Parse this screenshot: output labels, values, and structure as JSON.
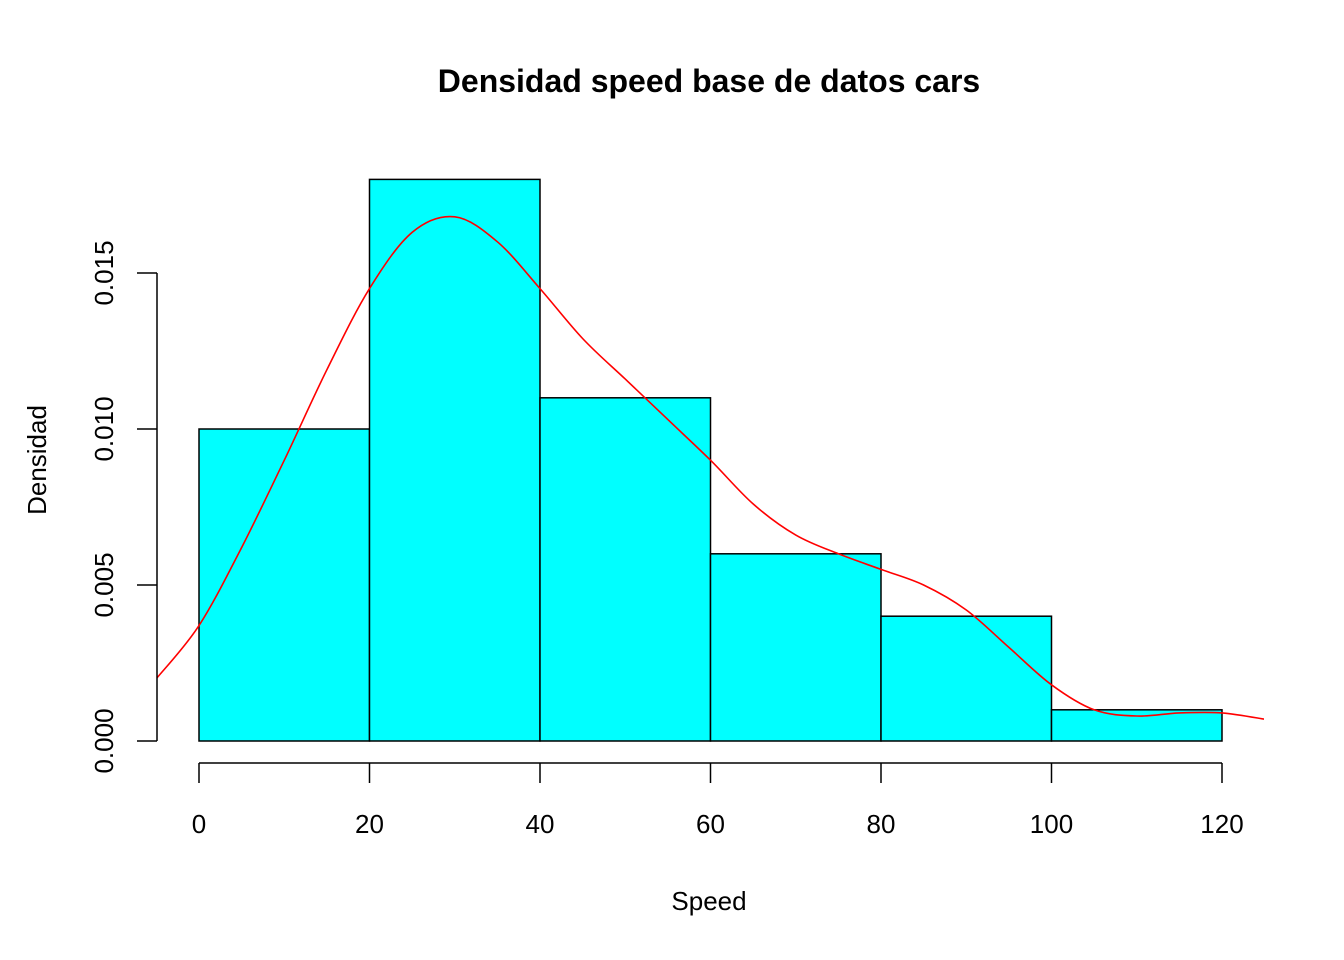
{
  "chart_data": {
    "type": "bar",
    "subtype": "histogram-with-density-curve",
    "title": "Densidad speed base de datos cars",
    "xlabel": "Speed",
    "ylabel": "Densidad",
    "bins": [
      {
        "start": 0,
        "end": 20,
        "density": 0.01
      },
      {
        "start": 20,
        "end": 40,
        "density": 0.018
      },
      {
        "start": 40,
        "end": 60,
        "density": 0.011
      },
      {
        "start": 60,
        "end": 80,
        "density": 0.006
      },
      {
        "start": 80,
        "end": 100,
        "density": 0.004
      },
      {
        "start": 100,
        "end": 120,
        "density": 0.001
      }
    ],
    "density_curve": {
      "x": [
        -5,
        0,
        5,
        10,
        15,
        20,
        25,
        30,
        35,
        40,
        45,
        50,
        55,
        60,
        65,
        70,
        75,
        80,
        85,
        90,
        95,
        100,
        105,
        110,
        115,
        120,
        125
      ],
      "y": [
        0.002,
        0.0037,
        0.0062,
        0.009,
        0.0119,
        0.0145,
        0.0163,
        0.0168,
        0.016,
        0.0145,
        0.0129,
        0.0116,
        0.0103,
        0.009,
        0.0076,
        0.0066,
        0.006,
        0.0055,
        0.005,
        0.0042,
        0.003,
        0.0018,
        0.001,
        0.0008,
        0.0009,
        0.0009,
        0.0007
      ]
    },
    "x_ticks": [
      "0",
      "20",
      "40",
      "60",
      "80",
      "100",
      "120"
    ],
    "y_ticks": [
      "0.000",
      "0.005",
      "0.010",
      "0.015"
    ],
    "xlim": [
      -5,
      125
    ],
    "ylim": [
      0,
      0.018
    ],
    "colors": {
      "bar_fill": "#00FFFF",
      "bar_stroke": "#000000",
      "curve": "#FF0000"
    },
    "grid": false,
    "legend": "none"
  }
}
